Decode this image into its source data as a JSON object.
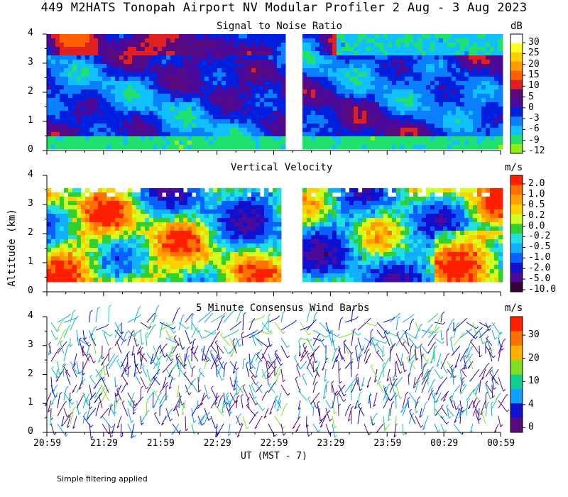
{
  "header": {
    "title": "449 M2HATS Tonopah Airport NV Modular Profiler  2 Aug -  3 Aug 2023"
  },
  "y_axis": {
    "label": "Altitude (km)",
    "ticks": [
      "0",
      "1",
      "2",
      "3",
      "4"
    ]
  },
  "x_axis": {
    "label": "UT  (MST - 7)",
    "ticks": [
      "20:59",
      "21:29",
      "21:59",
      "22:29",
      "22:59",
      "23:29",
      "23:59",
      "00:29",
      "00:59"
    ]
  },
  "footer": {
    "note": "Simple filtering applied"
  },
  "colors": {
    "snr_scale": [
      "#90ee10",
      "#20e070",
      "#10c0ff",
      "#0a80ff",
      "#0020e0",
      "#4b0a9a",
      "#5a0a7a",
      "#e02020",
      "#ff6000",
      "#ff9c00",
      "#ffd000",
      "#ffff20",
      "#ffffff"
    ],
    "vv_scale": [
      "#3a003a",
      "#4b0a9a",
      "#1010d0",
      "#0a60ff",
      "#10b0ff",
      "#20e0e0",
      "#30d030",
      "#d0ff20",
      "#ffd000",
      "#ffa000",
      "#ff7000",
      "#ff2000"
    ],
    "wind_scale": [
      "#5a0a7a",
      "#1010d0",
      "#10a0ff",
      "#10d090",
      "#80e020",
      "#ffb000",
      "#ff7000",
      "#ff2000"
    ]
  },
  "chart_data": [
    {
      "type": "heatmap",
      "title": "Signal to Noise Ratio",
      "units": "dB",
      "xlabel": "UT  (MST - 7)",
      "ylabel": "Altitude (km)",
      "ylim": [
        0,
        4
      ],
      "xlim": [
        "20:59",
        "00:59"
      ],
      "gap": [
        "23:07",
        "23:13"
      ],
      "colorbar_labels": [
        "30",
        "25",
        "20",
        "15",
        "10",
        "5",
        "0",
        "-3",
        "-6",
        "-9",
        "-12"
      ]
    },
    {
      "type": "heatmap",
      "title": "Vertical Velocity",
      "units": "m/s",
      "xlabel": "UT  (MST - 7)",
      "ylabel": "Altitude (km)",
      "ylim": [
        0,
        4
      ],
      "xlim": [
        "20:59",
        "00:59"
      ],
      "gap": [
        "23:05",
        "23:13"
      ],
      "colorbar_labels": [
        "2.0",
        "1.0",
        "0.5",
        "0.2",
        "0.0",
        "-0.2",
        "-0.5",
        "-1.0",
        "-2.0",
        "-5.0",
        "-10.0"
      ]
    },
    {
      "type": "scatter",
      "title": "5 Minute Consensus Wind Barbs",
      "units": "m/s",
      "xlabel": "UT  (MST - 7)",
      "ylabel": "Altitude (km)",
      "ylim": [
        0,
        4
      ],
      "xlim": [
        "20:59",
        "00:59"
      ],
      "colorbar_labels": [
        "30",
        "20",
        "10",
        "4",
        "0"
      ]
    }
  ]
}
